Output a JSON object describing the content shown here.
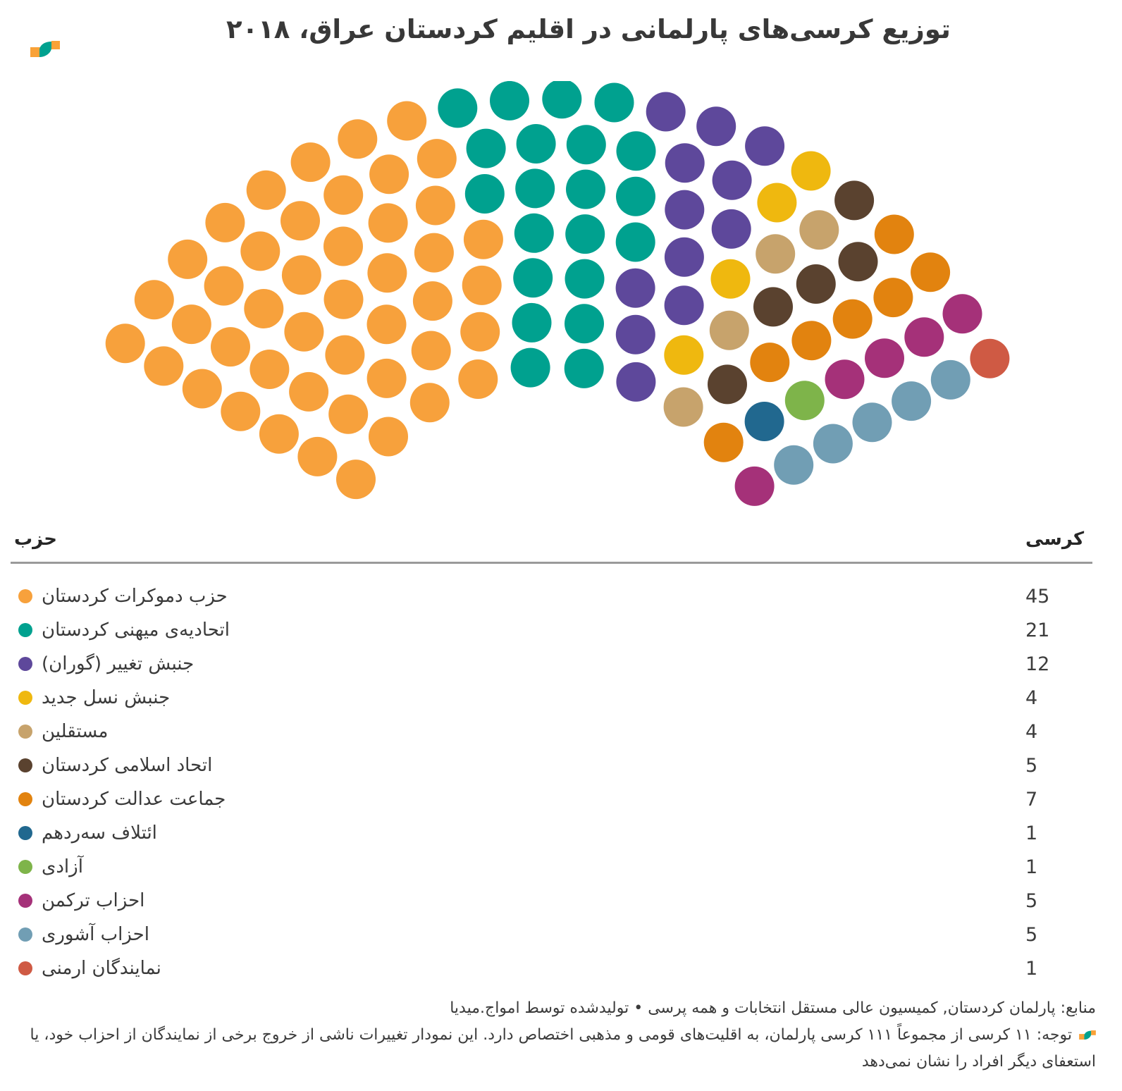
{
  "title": "توزیع کرسی‌های پارلمانی در اقلیم کردستان عراق، ۲۰۱۸",
  "brand": {
    "logo_teal": "#00A18F",
    "logo_orange": "#F9A238"
  },
  "table": {
    "party_header": "حزب",
    "seats_header": "کرسی"
  },
  "chart_data": {
    "type": "parliament",
    "total_seats": 111,
    "rows": [
      10,
      12,
      14,
      16,
      18,
      20,
      21
    ],
    "start_angle_deg": 149.5,
    "end_angle_deg": 28.5,
    "legend_position": "bottom-table",
    "parties": [
      {
        "name": "حزب دموکرات کردستان",
        "seats": 45,
        "color": "#F7A13C"
      },
      {
        "name": "اتحادیه‌ی میهنی کردستان",
        "seats": 21,
        "color": "#00A18F"
      },
      {
        "name": "جنبش تغییر (گوران)",
        "seats": 12,
        "color": "#5E489B"
      },
      {
        "name": "جنبش نسل جدید",
        "seats": 4,
        "color": "#EFB80F"
      },
      {
        "name": "مستقلین",
        "seats": 4,
        "color": "#C7A36C"
      },
      {
        "name": "اتحاد اسلامی کردستان",
        "seats": 5,
        "color": "#5A422F"
      },
      {
        "name": "جماعت عدالت کردستان",
        "seats": 7,
        "color": "#E2830F"
      },
      {
        "name": "ائتلاف سه‌ردهم",
        "seats": 1,
        "color": "#21688F"
      },
      {
        "name": "آزادی",
        "seats": 1,
        "color": "#7EB44A"
      },
      {
        "name": "احزاب ترکمن",
        "seats": 5,
        "color": "#A53179"
      },
      {
        "name": "احزاب آشوری",
        "seats": 5,
        "color": "#719EB4"
      },
      {
        "name": "نمایندگان ارمنی",
        "seats": 1,
        "color": "#CF5A44"
      }
    ]
  },
  "notes": {
    "sources_line": "منابع: پارلمان کردستان, کمیسیون عالی مستقل انتخابات و همه پرسی • تولیدشده توسط امواج.میدیا",
    "note_line1": "توجه: ۱۱ کرسی از مجموعاً ۱۱۱ کرسی پارلمان، به اقلیت‌های قومی و مذهبی اختصاص دارد. این نمودار تغییرات ناشی از خروج برخی از نمایندگان از احزاب خود، یا",
    "note_line2": "استعفای دیگر افراد را نشان نمی‌دهد"
  }
}
